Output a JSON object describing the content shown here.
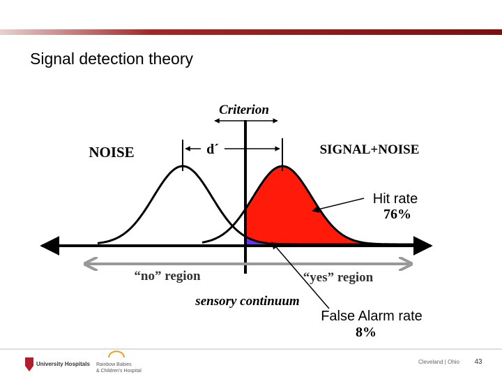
{
  "header": {
    "title": "Signal detection theory"
  },
  "diagram": {
    "criterion": "Criterion",
    "noise": "NOISE",
    "d_prime": "d´",
    "signal_noise": "SIGNAL+NOISE",
    "hit_rate": {
      "label": "Hit rate",
      "value": "76%"
    },
    "false_alarm_rate": {
      "label": "False Alarm rate",
      "value": "8%"
    },
    "no_region": "“no” region",
    "yes_region": "“yes” region",
    "axis_label": "sensory continuum"
  },
  "footer": {
    "logo_left": "University Hospitals",
    "logo_middle_1": "Rainbow Babies",
    "logo_middle_2": "& Children's Hospital",
    "location": "Cleveland | Ohio",
    "page_number": "43"
  }
}
